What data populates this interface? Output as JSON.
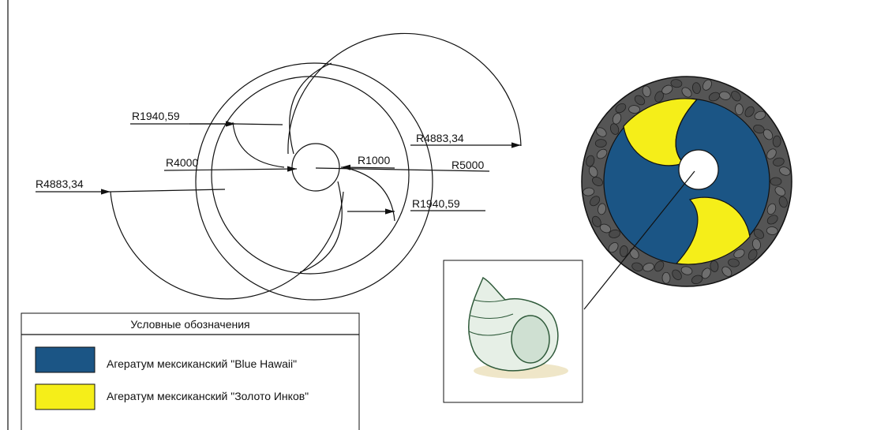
{
  "dimensions": [
    {
      "label": "R1940,59"
    },
    {
      "label": "R4000"
    },
    {
      "label": "R1000"
    },
    {
      "label": "R5000"
    },
    {
      "label": "R4883,34"
    },
    {
      "label": "R4883,34"
    },
    {
      "label": "R1940,59"
    }
  ],
  "legend": {
    "title": "Условные обозначения",
    "items": [
      {
        "label": "Агератум мексиканский \"Blue Hawaii\"",
        "color": "#1b5585"
      },
      {
        "label": "Агератум мексиканский \"Золото Инков\"",
        "color": "#f5ee19"
      }
    ]
  }
}
